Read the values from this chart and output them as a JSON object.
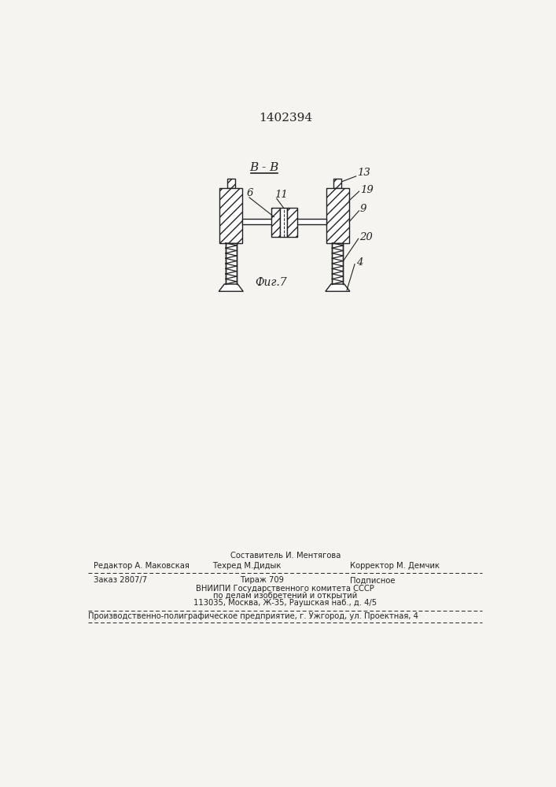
{
  "patent_number": "1402394",
  "section_label": "B - B",
  "fig_caption": "Фиг.7",
  "background_color": "#f5f4f0",
  "line_color": "#222222",
  "footer": {
    "sostavitel": "Составитель И. Ментягова",
    "redaktor": "Редактор А. Маковская",
    "tehred": "Техред М.Дидык",
    "korrektor": "Корректор М. Демчик",
    "zakaz": "Заказ 2807/7",
    "tirazh": "Тираж 709",
    "podpisnoe": "Подписное",
    "vniipи1": "ВНИИПИ Государственного комитета СССР",
    "vniipи2": "по делам изобретений и открытий",
    "address": "113035, Москва, Ж-35, Раушская наб., д. 4/5",
    "proizv": "Производственно-полиграфическое предприятие, г. Ужгород, ул. Проектная, 4"
  }
}
